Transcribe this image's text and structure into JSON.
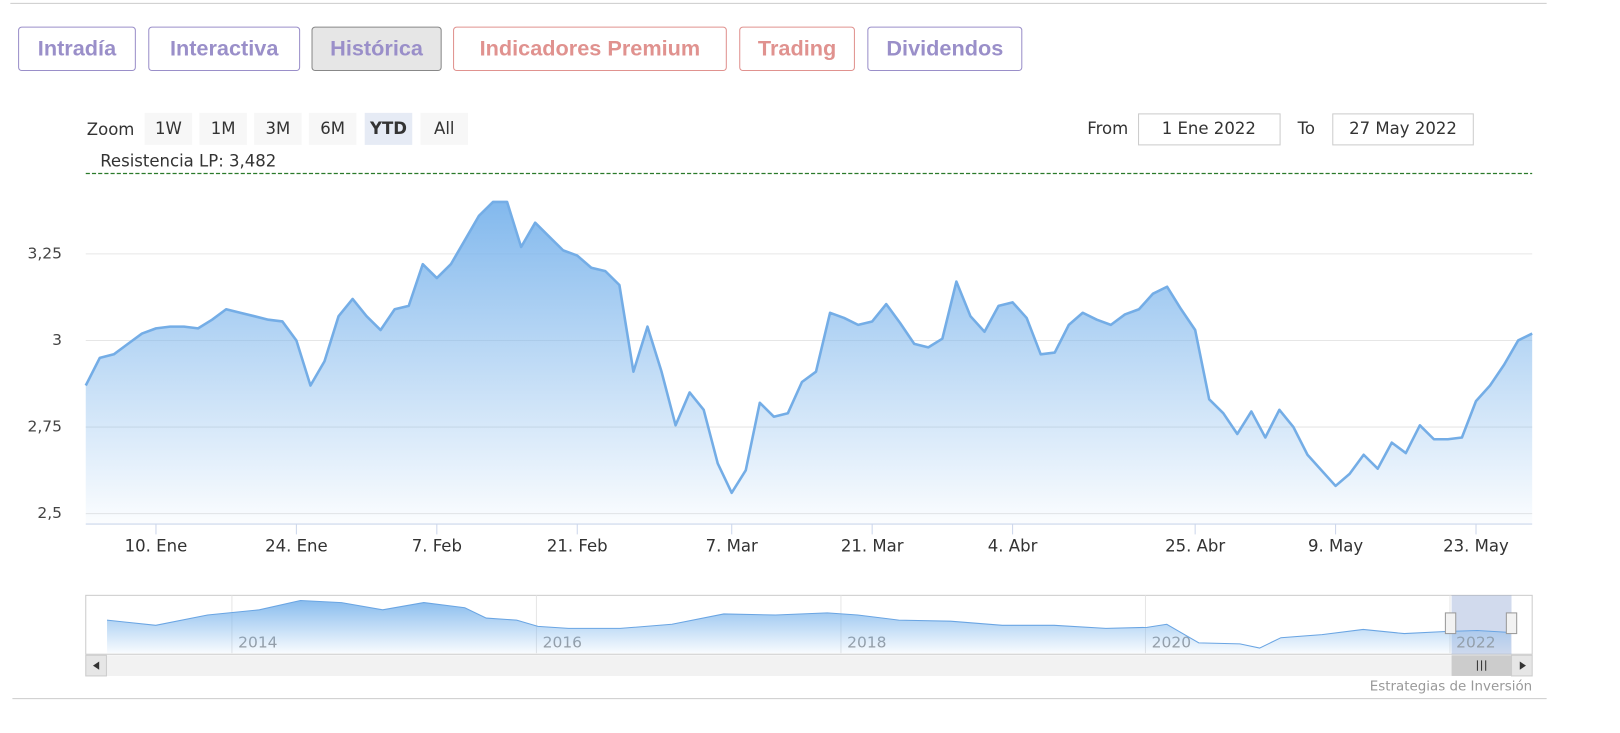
{
  "tabs": [
    {
      "label": "Intradía",
      "color": "#9a8fc9"
    },
    {
      "label": "Interactiva",
      "color": "#9a8fc9"
    },
    {
      "label": "Histórica",
      "color": "#9a8fc9"
    },
    {
      "label": "Indicadores Premium",
      "color": "#e0928f"
    },
    {
      "label": "Trading",
      "color": "#e0928f"
    },
    {
      "label": "Dividendos",
      "color": "#9a8fc9"
    }
  ],
  "active_tab": 2,
  "zoom": {
    "label": "Zoom",
    "buttons": [
      "1W",
      "1M",
      "3M",
      "6M",
      "YTD",
      "All"
    ],
    "active": 4
  },
  "range": {
    "from_label": "From",
    "from": "1 Ene 2022",
    "to_label": "To",
    "to": "27 May 2022"
  },
  "chart_data": {
    "type": "area",
    "categories": [
      null,
      null,
      null,
      null,
      null,
      "10. Ene",
      null,
      null,
      null,
      null,
      null,
      null,
      null,
      null,
      null,
      "24. Ene",
      null,
      null,
      null,
      null,
      null,
      null,
      null,
      null,
      null,
      "7. Feb",
      null,
      null,
      null,
      null,
      null,
      null,
      null,
      null,
      null,
      "21. Feb",
      null,
      null,
      null,
      null,
      null,
      null,
      null,
      null,
      null,
      null,
      "7. Mar",
      null,
      null,
      null,
      null,
      null,
      null,
      null,
      null,
      null,
      "21. Mar",
      null,
      null,
      null,
      null,
      null,
      null,
      null,
      null,
      null,
      "4. Abr",
      null,
      null,
      null,
      null,
      null,
      null,
      null,
      null,
      null,
      null,
      null,
      null,
      "25. Abr",
      null,
      null,
      null,
      null,
      null,
      null,
      null,
      null,
      null,
      "9. May",
      null,
      null,
      null,
      null,
      null,
      null,
      null,
      null,
      null,
      "23. May",
      null,
      null,
      null,
      null
    ],
    "values": [
      2.87,
      2.95,
      2.96,
      2.99,
      3.02,
      3.035,
      3.04,
      3.04,
      3.035,
      3.06,
      3.09,
      3.08,
      3.07,
      3.06,
      3.055,
      3.0,
      2.87,
      2.94,
      3.07,
      3.12,
      3.07,
      3.03,
      3.09,
      3.1,
      3.22,
      3.18,
      3.22,
      3.29,
      3.36,
      3.4,
      3.4,
      3.27,
      3.34,
      3.3,
      3.26,
      3.245,
      3.21,
      3.2,
      3.16,
      2.91,
      3.04,
      2.91,
      2.755,
      2.85,
      2.8,
      2.645,
      2.56,
      2.625,
      2.82,
      2.78,
      2.79,
      2.88,
      2.91,
      3.08,
      3.065,
      3.045,
      3.055,
      3.105,
      3.05,
      2.99,
      2.98,
      3.005,
      3.17,
      3.07,
      3.025,
      3.1,
      3.11,
      3.065,
      2.96,
      2.965,
      3.045,
      3.08,
      3.06,
      3.045,
      3.075,
      3.09,
      3.135,
      3.155,
      3.09,
      3.03,
      2.83,
      2.79,
      2.73,
      2.795,
      2.72,
      2.8,
      2.75,
      2.67,
      2.625,
      2.58,
      2.615,
      2.67,
      2.63,
      2.705,
      2.675,
      2.755,
      2.715,
      2.715,
      2.72,
      2.825,
      2.87,
      2.93,
      3.0,
      3.02
    ],
    "color": "#74ade6",
    "ylim": [
      2.47,
      3.49
    ],
    "yticks": [
      {
        "value": 2.5,
        "label": "2,5"
      },
      {
        "value": 2.75,
        "label": "2,75"
      },
      3,
      {
        "value": 3.25,
        "label": "3,25"
      }
    ],
    "grid": true,
    "resistance": {
      "value": 3.482,
      "label": "Resistencia LP: 3,482",
      "color": "#2a7a2a"
    }
  },
  "navigator": {
    "type": "area",
    "x": [
      2013.18,
      2013.5,
      2013.84,
      2014.18,
      2014.45,
      2014.72,
      2014.99,
      2015.26,
      2015.53,
      2015.67,
      2015.87,
      2016.01,
      2016.21,
      2016.55,
      2016.89,
      2017.23,
      2017.57,
      2017.91,
      2018.11,
      2018.38,
      2018.72,
      2019.06,
      2019.4,
      2019.74,
      2020.01,
      2020.14,
      2020.35,
      2020.62,
      2020.75,
      2020.89,
      2021.16,
      2021.43,
      2021.7,
      2021.97,
      2022.18,
      2022.4
    ],
    "values": [
      3.23,
      3.08,
      3.38,
      3.53,
      3.8,
      3.74,
      3.53,
      3.74,
      3.59,
      3.29,
      3.23,
      3.05,
      2.99,
      2.99,
      3.11,
      3.41,
      3.38,
      3.44,
      3.38,
      3.23,
      3.2,
      3.08,
      3.08,
      2.99,
      3.02,
      3.11,
      2.57,
      2.54,
      2.42,
      2.72,
      2.81,
      2.96,
      2.84,
      2.9,
      2.93,
      2.87
    ],
    "color": "#6aa5e3",
    "xlim": [
      2013.04,
      2022.54
    ],
    "ylim": [
      2.27,
      3.95
    ],
    "xticks": [
      2014,
      2016,
      2018,
      2020,
      2022
    ]
  },
  "credits": "Estrategias de Inversión"
}
